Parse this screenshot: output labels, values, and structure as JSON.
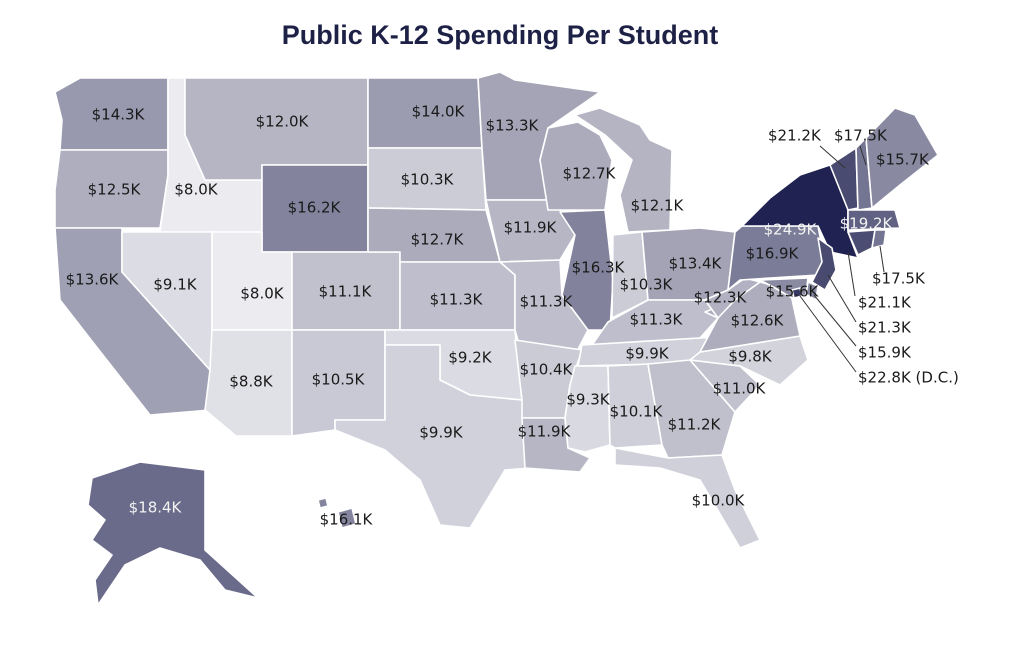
{
  "title": "Public K-12 Spending Per Student",
  "colors": {
    "low": "#ebebf0",
    "mid": "#a6a6b8",
    "high": "#1f2150",
    "border": "#ffffff"
  },
  "states": {
    "WA": "$14.3K",
    "OR": "$12.5K",
    "CA": "$13.6K",
    "ID": "$8.0K",
    "NV": "$9.1K",
    "MT": "$12.0K",
    "WY": "$16.2K",
    "UT": "$8.0K",
    "AZ": "$8.8K",
    "CO": "$11.1K",
    "NM": "$10.5K",
    "ND": "$14.0K",
    "SD": "$10.3K",
    "NE": "$12.7K",
    "KS": "$11.3K",
    "OK": "$9.2K",
    "TX": "$9.9K",
    "MN": "$13.3K",
    "IA": "$11.9K",
    "MO": "$11.3K",
    "AR": "$10.4K",
    "LA": "$11.9K",
    "WI": "$12.7K",
    "IL": "$16.3K",
    "MI": "$12.1K",
    "IN": "$10.3K",
    "OH": "$13.4K",
    "KY": "$11.3K",
    "TN": "$9.9K",
    "MS": "$9.3K",
    "AL": "$10.1K",
    "GA": "$11.2K",
    "FL": "$10.0K",
    "SC": "$11.0K",
    "NC": "$9.8K",
    "VA": "$12.6K",
    "WV": "$12.3K",
    "PA": "$16.9K",
    "NY": "$24.9K",
    "VT": "$21.2K",
    "NH": "$17.5K",
    "ME": "$15.7K",
    "MA": "$19.2K",
    "RI": "$17.5K",
    "CT": "$21.1K",
    "NJ": "$21.3K",
    "DE": "$15.9K",
    "MD": "$15.6K",
    "DC": "$22.8K (D.C.)",
    "AK": "$18.4K",
    "HI": "$16.1K"
  }
}
